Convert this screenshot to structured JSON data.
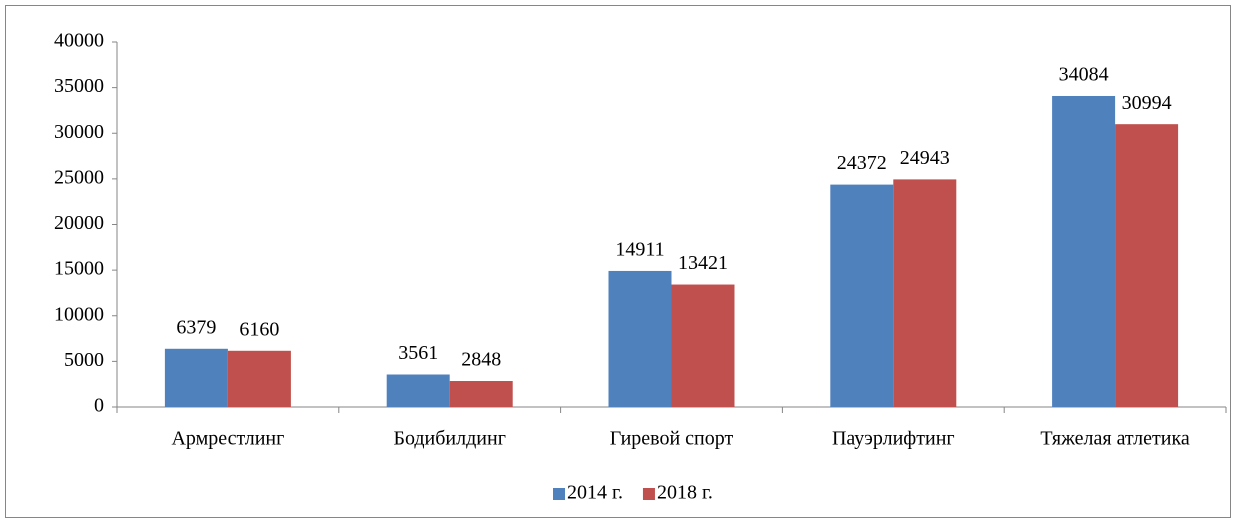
{
  "chart_data": {
    "type": "bar",
    "categories": [
      "Армрестлинг",
      "Бодибилдинг",
      "Гиревой спорт",
      "Пауэрлифтинг",
      "Тяжелая атлетика"
    ],
    "series": [
      {
        "name": "2014 г.",
        "color": "#4f81bd",
        "values": [
          6379,
          3561,
          14911,
          24372,
          34084
        ]
      },
      {
        "name": "2018 г.",
        "color": "#c0504d",
        "values": [
          6160,
          2848,
          13421,
          24943,
          30994
        ]
      }
    ],
    "ylim": [
      0,
      40000
    ],
    "yticks": [
      0,
      5000,
      10000,
      15000,
      20000,
      25000,
      30000,
      35000,
      40000
    ],
    "legend": "bottom"
  }
}
